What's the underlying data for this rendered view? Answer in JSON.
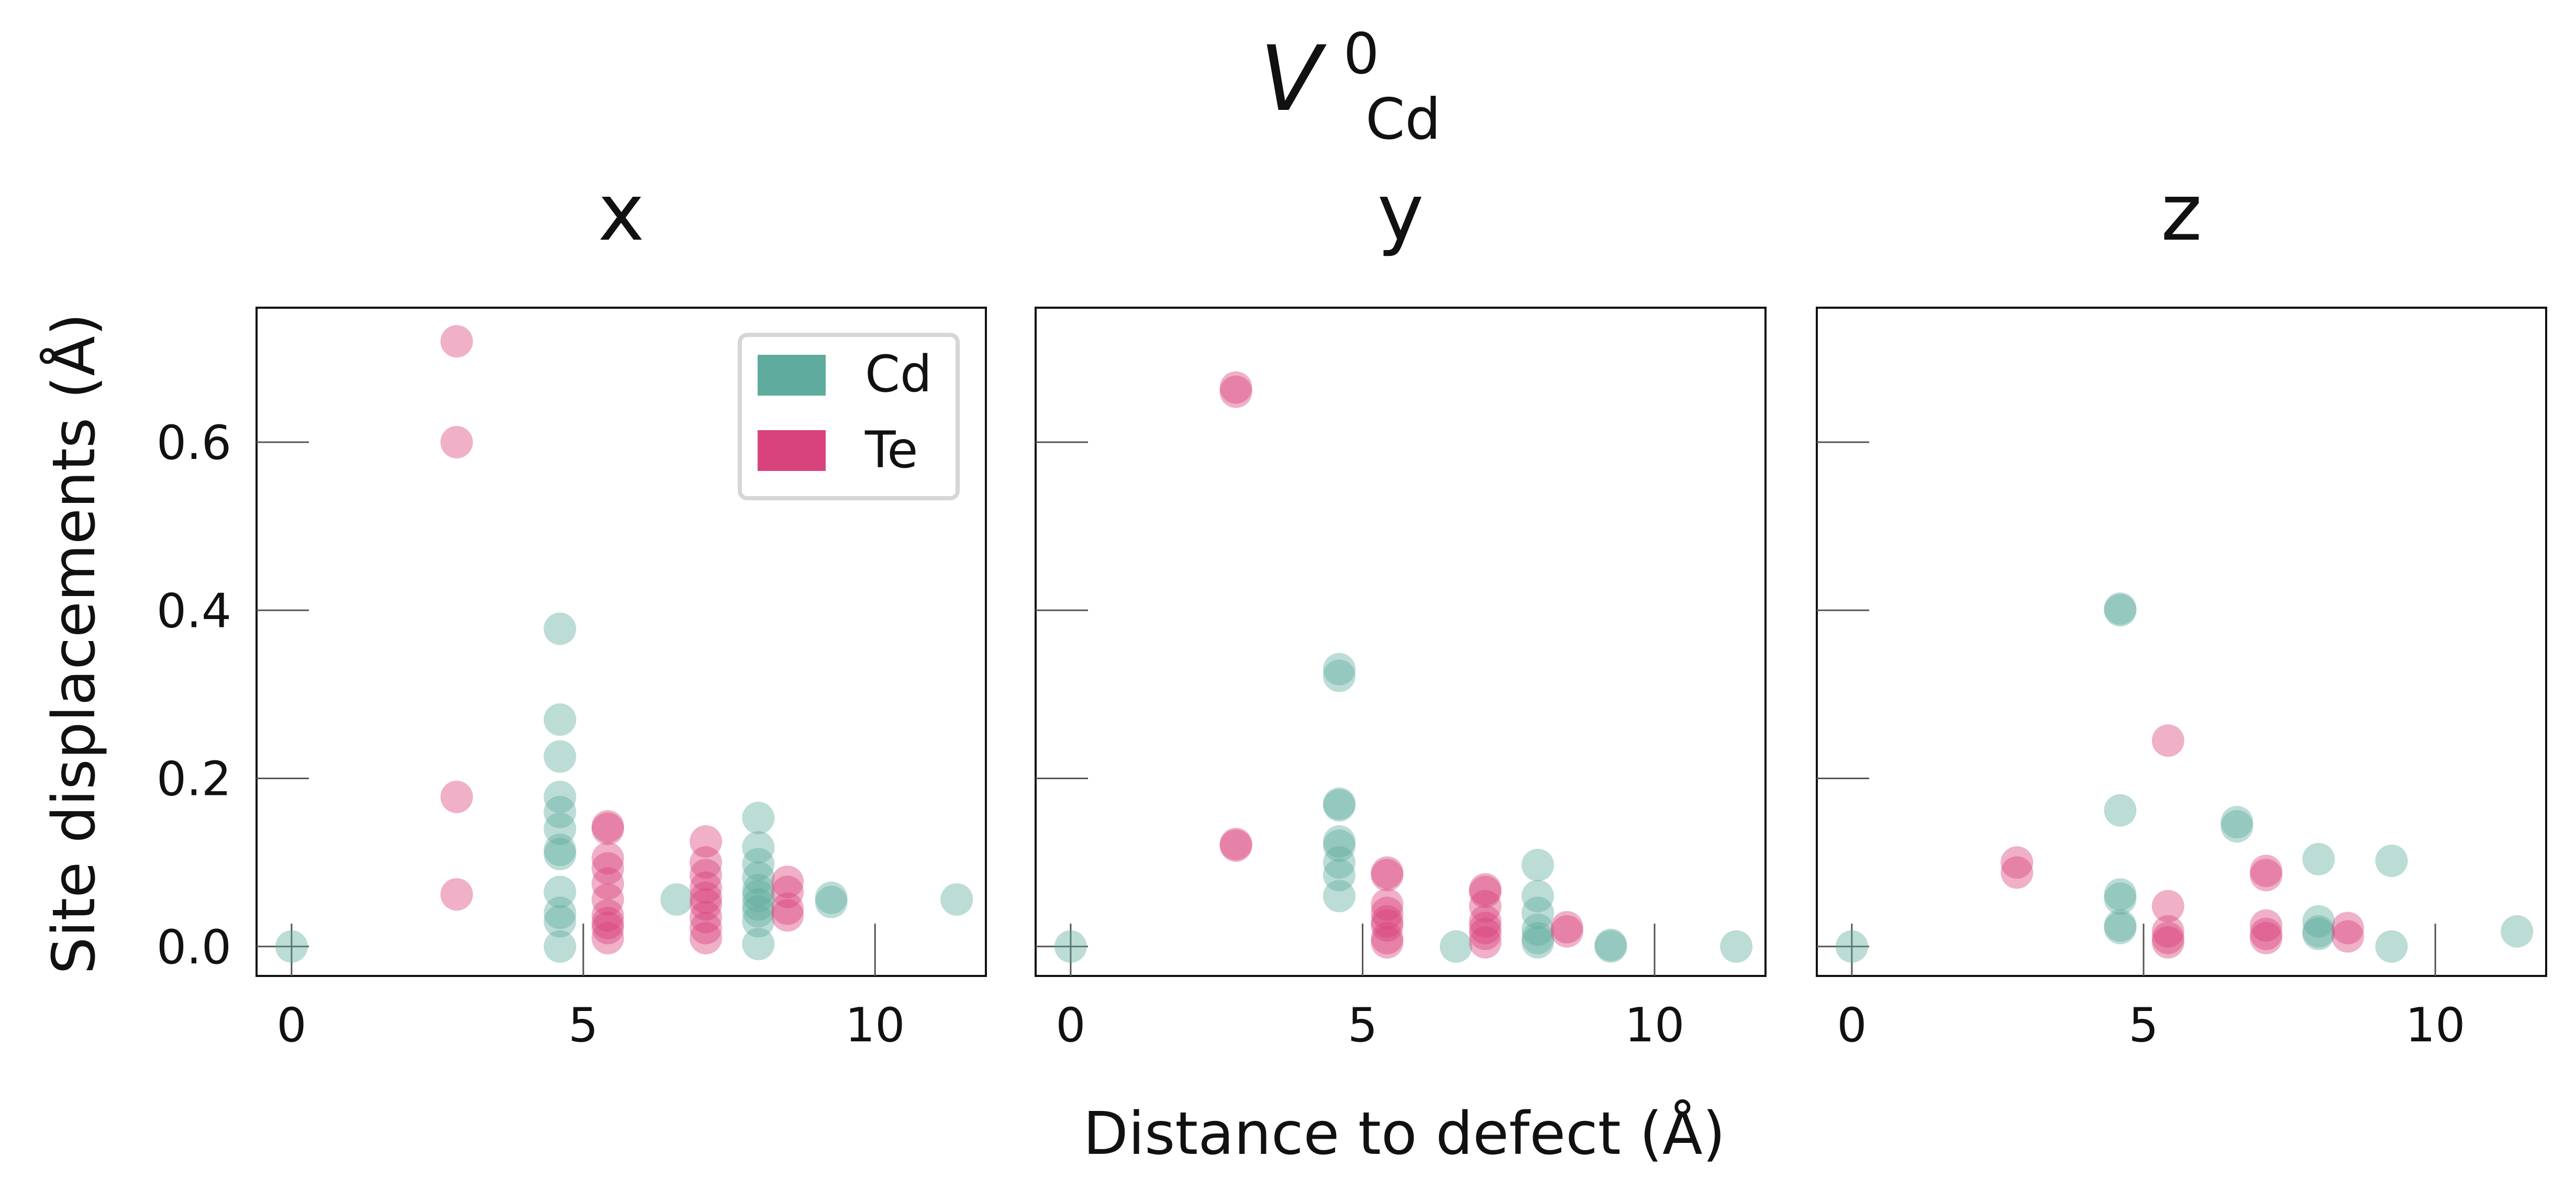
{
  "figure": {
    "title_main": "V",
    "title_sup": "0",
    "title_sub": "Cd",
    "ylabel": "Site displacements (Å)",
    "xlabel": "Distance to defect (Å)",
    "colors": {
      "Cd": "#5fab9e",
      "Te": "#d9437d"
    }
  },
  "chart_data": [
    {
      "type": "scatter",
      "title": "x",
      "xlim": [
        -0.6,
        11.9
      ],
      "ylim": [
        -0.035,
        0.76
      ],
      "xticks": [
        0,
        5,
        10
      ],
      "yticks": [
        0.0,
        0.2,
        0.4,
        0.6
      ],
      "ytick_labels": [
        "0.0",
        "0.2",
        "0.4",
        "0.6"
      ],
      "legend": {
        "placement": "top-right",
        "entries": [
          "Cd",
          "Te"
        ]
      },
      "series": [
        {
          "name": "Cd",
          "color": "#5fab9e",
          "points": [
            [
              0,
              0
            ],
            [
              4.6,
              0.378
            ],
            [
              4.6,
              0.27
            ],
            [
              4.6,
              0.226
            ],
            [
              4.6,
              0.178
            ],
            [
              4.6,
              0.16
            ],
            [
              4.6,
              0.14
            ],
            [
              4.6,
              0.115
            ],
            [
              4.6,
              0.11
            ],
            [
              4.6,
              0.065
            ],
            [
              4.6,
              0.04
            ],
            [
              4.6,
              0.03
            ],
            [
              4.6,
              0.0
            ],
            [
              6.6,
              0.056
            ],
            [
              8.0,
              0.153
            ],
            [
              8.0,
              0.118
            ],
            [
              8.0,
              0.098
            ],
            [
              8.0,
              0.082
            ],
            [
              8.0,
              0.067
            ],
            [
              8.0,
              0.06
            ],
            [
              8.0,
              0.05
            ],
            [
              8.0,
              0.042
            ],
            [
              8.0,
              0.03
            ],
            [
              8.0,
              0.003
            ],
            [
              9.25,
              0.058
            ],
            [
              9.25,
              0.053
            ],
            [
              11.4,
              0.056
            ]
          ]
        },
        {
          "name": "Te",
          "color": "#d9437d",
          "points": [
            [
              2.83,
              0.72
            ],
            [
              2.83,
              0.6
            ],
            [
              2.83,
              0.178
            ],
            [
              2.83,
              0.062
            ],
            [
              5.42,
              0.143
            ],
            [
              5.42,
              0.14
            ],
            [
              5.42,
              0.105
            ],
            [
              5.42,
              0.093
            ],
            [
              5.42,
              0.075
            ],
            [
              5.42,
              0.056
            ],
            [
              5.42,
              0.037
            ],
            [
              5.42,
              0.028
            ],
            [
              5.42,
              0.022
            ],
            [
              5.42,
              0.01
            ],
            [
              7.1,
              0.125
            ],
            [
              7.1,
              0.1
            ],
            [
              7.1,
              0.085
            ],
            [
              7.1,
              0.07
            ],
            [
              7.1,
              0.058
            ],
            [
              7.1,
              0.05
            ],
            [
              7.1,
              0.035
            ],
            [
              7.1,
              0.022
            ],
            [
              7.1,
              0.01
            ],
            [
              8.5,
              0.077
            ],
            [
              8.5,
              0.065
            ],
            [
              8.5,
              0.045
            ],
            [
              8.5,
              0.037
            ]
          ]
        }
      ]
    },
    {
      "type": "scatter",
      "title": "y",
      "xlim": [
        -0.6,
        11.9
      ],
      "ylim": [
        -0.035,
        0.76
      ],
      "xticks": [
        0,
        5,
        10
      ],
      "yticks": [
        0.0,
        0.2,
        0.4,
        0.6
      ],
      "series": [
        {
          "name": "Cd",
          "color": "#5fab9e",
          "points": [
            [
              0,
              0
            ],
            [
              4.6,
              0.33
            ],
            [
              4.6,
              0.322
            ],
            [
              4.6,
              0.17
            ],
            [
              4.6,
              0.168
            ],
            [
              4.6,
              0.125
            ],
            [
              4.6,
              0.12
            ],
            [
              4.6,
              0.1
            ],
            [
              4.6,
              0.085
            ],
            [
              4.6,
              0.06
            ],
            [
              6.6,
              0.0
            ],
            [
              8.0,
              0.097
            ],
            [
              8.0,
              0.06
            ],
            [
              8.0,
              0.04
            ],
            [
              8.0,
              0.02
            ],
            [
              8.0,
              0.01
            ],
            [
              8.0,
              0.005
            ],
            [
              9.25,
              0.0
            ],
            [
              9.25,
              0.002
            ],
            [
              11.4,
              0.0
            ]
          ]
        },
        {
          "name": "Te",
          "color": "#d9437d",
          "points": [
            [
              2.83,
              0.665
            ],
            [
              2.83,
              0.66
            ],
            [
              2.83,
              0.122
            ],
            [
              2.83,
              0.12
            ],
            [
              5.42,
              0.088
            ],
            [
              5.42,
              0.085
            ],
            [
              5.42,
              0.05
            ],
            [
              5.42,
              0.04
            ],
            [
              5.42,
              0.03
            ],
            [
              5.42,
              0.025
            ],
            [
              5.42,
              0.01
            ],
            [
              5.42,
              0.005
            ],
            [
              7.1,
              0.068
            ],
            [
              7.1,
              0.065
            ],
            [
              7.1,
              0.048
            ],
            [
              7.1,
              0.03
            ],
            [
              7.1,
              0.022
            ],
            [
              7.1,
              0.015
            ],
            [
              7.1,
              0.005
            ],
            [
              8.5,
              0.023
            ],
            [
              8.5,
              0.018
            ]
          ]
        }
      ]
    },
    {
      "type": "scatter",
      "title": "z",
      "xlim": [
        -0.6,
        11.9
      ],
      "ylim": [
        -0.035,
        0.76
      ],
      "xticks": [
        0,
        5,
        10
      ],
      "yticks": [
        0.0,
        0.2,
        0.4,
        0.6
      ],
      "series": [
        {
          "name": "Cd",
          "color": "#5fab9e",
          "points": [
            [
              0,
              0
            ],
            [
              4.6,
              0.402
            ],
            [
              4.6,
              0.4
            ],
            [
              4.6,
              0.162
            ],
            [
              4.6,
              0.062
            ],
            [
              4.6,
              0.057
            ],
            [
              4.6,
              0.025
            ],
            [
              4.6,
              0.022
            ],
            [
              6.6,
              0.148
            ],
            [
              6.6,
              0.143
            ],
            [
              8.0,
              0.104
            ],
            [
              8.0,
              0.03
            ],
            [
              8.0,
              0.018
            ],
            [
              8.0,
              0.015
            ],
            [
              9.25,
              0.102
            ],
            [
              9.25,
              0.0
            ],
            [
              11.4,
              0.018
            ]
          ]
        },
        {
          "name": "Te",
          "color": "#d9437d",
          "points": [
            [
              2.83,
              0.1
            ],
            [
              2.83,
              0.088
            ],
            [
              5.42,
              0.245
            ],
            [
              5.42,
              0.048
            ],
            [
              5.42,
              0.018
            ],
            [
              5.42,
              0.01
            ],
            [
              5.42,
              0.005
            ],
            [
              7.1,
              0.09
            ],
            [
              7.1,
              0.085
            ],
            [
              7.1,
              0.025
            ],
            [
              7.1,
              0.015
            ],
            [
              7.1,
              0.01
            ],
            [
              8.5,
              0.022
            ],
            [
              8.5,
              0.012
            ]
          ]
        }
      ]
    }
  ]
}
